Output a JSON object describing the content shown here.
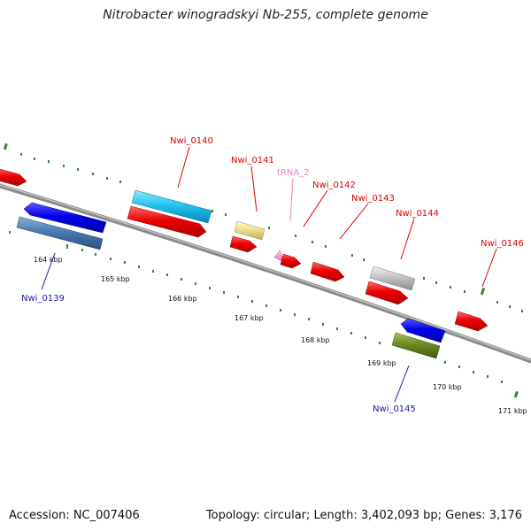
{
  "title": "Nitrobacter winogradskyi Nb-255, complete genome",
  "footer": {
    "accession": "Accession: NC_007406",
    "topology": "Topology: circular; Length: 3,402,093 bp; Genes: 3,176"
  },
  "colors": {
    "backbone": "#8a8a8a",
    "tick": "#2d8a2d",
    "label_red": "#dd0000",
    "label_blue": "#1a1aaa",
    "label_pink": "#f080c0"
  },
  "ticks": [
    {
      "kbp": 164,
      "label": "164 kbp"
    },
    {
      "kbp": 165,
      "label": "165 kbp"
    },
    {
      "kbp": 166,
      "label": "166 kbp"
    },
    {
      "kbp": 167,
      "label": "167 kbp"
    },
    {
      "kbp": 168,
      "label": "168 kbp"
    },
    {
      "kbp": 169,
      "label": "169 kbp"
    },
    {
      "kbp": 170,
      "label": "170 kbp"
    },
    {
      "kbp": 171,
      "label": "171 kbp"
    }
  ],
  "features": [
    {
      "id": "Nwi_0139",
      "label": "Nwi_0139",
      "label_color": "blue"
    },
    {
      "id": "Nwi_0140",
      "label": "Nwi_0140",
      "label_color": "red"
    },
    {
      "id": "Nwi_0141",
      "label": "Nwi_0141",
      "label_color": "red"
    },
    {
      "id": "tRNA_2",
      "label": "tRNA_2",
      "label_color": "pink"
    },
    {
      "id": "Nwi_0142",
      "label": "Nwi_0142",
      "label_color": "red"
    },
    {
      "id": "Nwi_0143",
      "label": "Nwi_0143",
      "label_color": "red"
    },
    {
      "id": "Nwi_0144",
      "label": "Nwi_0144",
      "label_color": "red"
    },
    {
      "id": "Nwi_0145",
      "label": "Nwi_0145",
      "label_color": "blue"
    },
    {
      "id": "Nwi_0146",
      "label": "Nwi_0146",
      "label_color": "red"
    }
  ]
}
